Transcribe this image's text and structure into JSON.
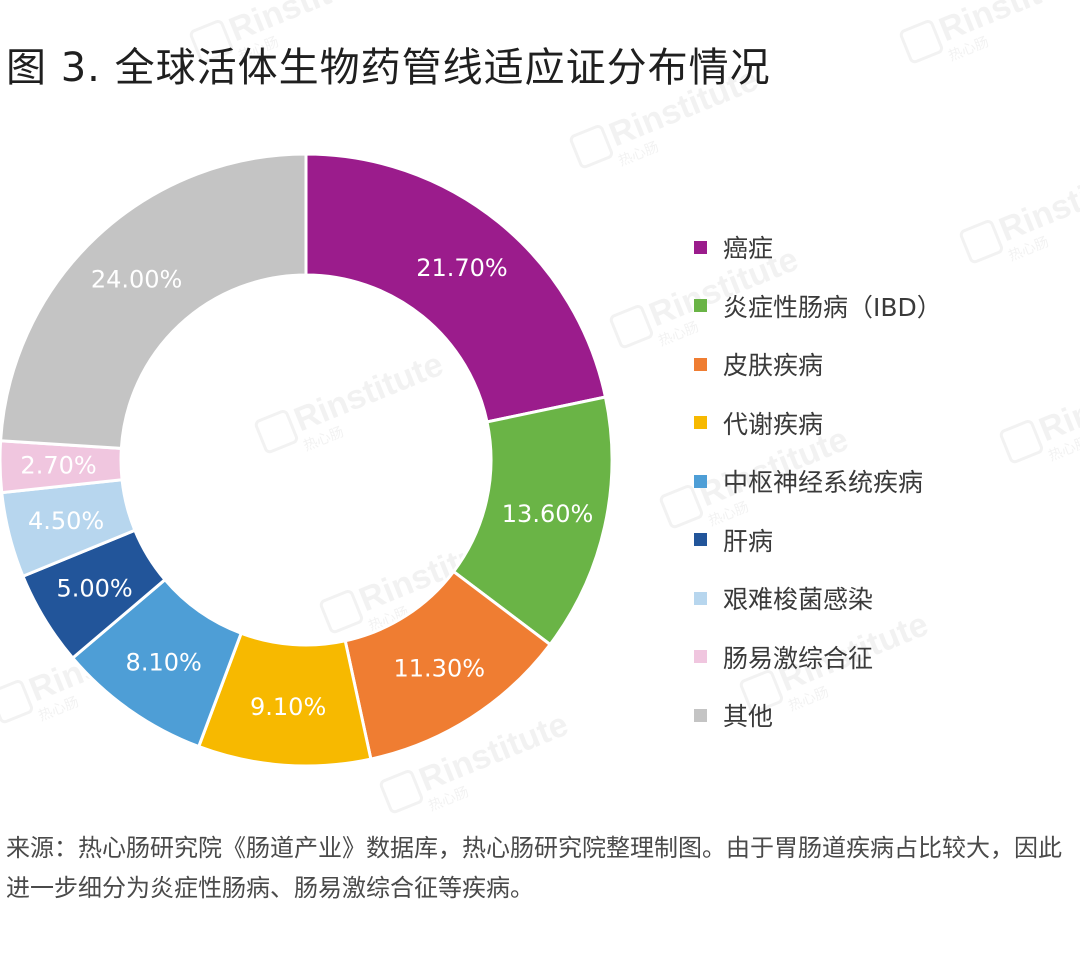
{
  "figure": {
    "title": "图 3. 全球活体生物药管线适应证分布情况",
    "source_note": "来源：热心肠研究院《肠道产业》数据库，热心肠研究院整理制图。由于胃肠道疾病占比较大，因此进一步细分为炎症性肠病、肠易激综合征等疾病。"
  },
  "watermark": {
    "brand": "Rinstitute",
    "sub": "热心肠"
  },
  "chart_data": {
    "type": "pie",
    "variant": "donut",
    "title": "图 3. 全球活体生物药管线适应证分布情况",
    "legend_position": "right",
    "start_angle": "12 o'clock",
    "direction": "clockwise",
    "unit": "%",
    "slices": [
      {
        "label": "癌症",
        "value": 21.7,
        "display": "21.70%",
        "color": "#9B1C8C"
      },
      {
        "label": "炎症性肠病（IBD）",
        "value": 13.6,
        "display": "13.60%",
        "color": "#6AB446"
      },
      {
        "label": "皮肤疾病",
        "value": 11.3,
        "display": "11.30%",
        "color": "#EF7D32"
      },
      {
        "label": "代谢疾病",
        "value": 9.1,
        "display": "9.10%",
        "color": "#F7B900"
      },
      {
        "label": "中枢神经系统疾病",
        "value": 8.1,
        "display": "8.10%",
        "color": "#4E9ED6"
      },
      {
        "label": "肝病",
        "value": 5.0,
        "display": "5.00%",
        "color": "#22559A"
      },
      {
        "label": "艰难梭菌感染",
        "value": 4.5,
        "display": "4.50%",
        "color": "#B7D6EE"
      },
      {
        "label": "肠易激综合征",
        "value": 2.7,
        "display": "2.70%",
        "color": "#F0C6DF"
      },
      {
        "label": "其他",
        "value": 24.0,
        "display": "24.00%",
        "color": "#C4C4C4"
      }
    ]
  }
}
